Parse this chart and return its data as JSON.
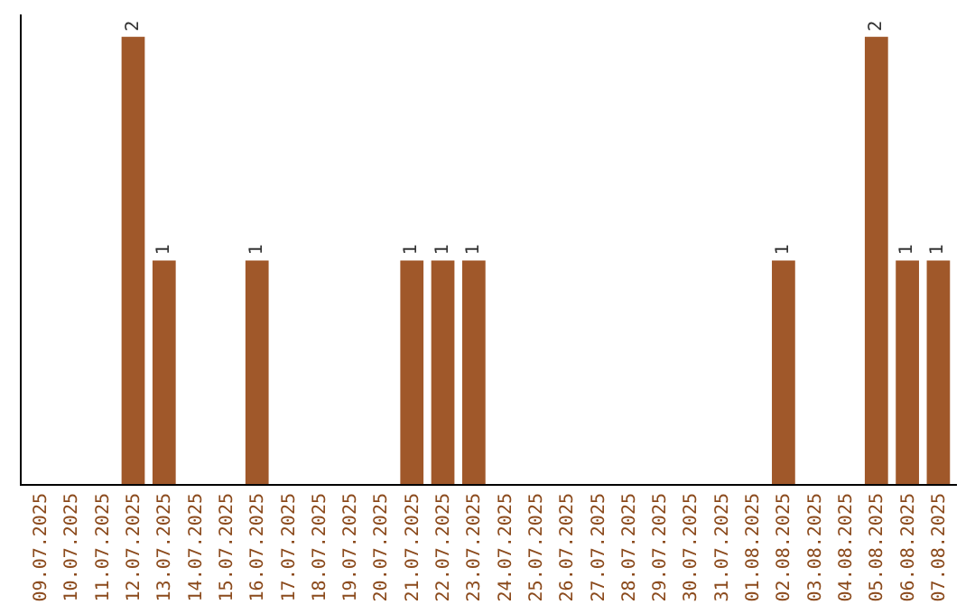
{
  "chart_data": {
    "type": "bar",
    "categories": [
      "09.07.2025",
      "10.07.2025",
      "11.07.2025",
      "12.07.2025",
      "13.07.2025",
      "14.07.2025",
      "15.07.2025",
      "16.07.2025",
      "17.07.2025",
      "18.07.2025",
      "19.07.2025",
      "20.07.2025",
      "21.07.2025",
      "22.07.2025",
      "23.07.2025",
      "24.07.2025",
      "25.07.2025",
      "26.07.2025",
      "27.07.2025",
      "28.07.2025",
      "29.07.2025",
      "30.07.2025",
      "31.07.2025",
      "01.08.2025",
      "02.08.2025",
      "03.08.2025",
      "04.08.2025",
      "05.08.2025",
      "06.08.2025",
      "07.08.2025"
    ],
    "values": [
      0,
      0,
      0,
      2,
      1,
      0,
      0,
      1,
      0,
      0,
      0,
      0,
      1,
      1,
      1,
      0,
      0,
      0,
      0,
      0,
      0,
      0,
      0,
      0,
      1,
      0,
      0,
      2,
      1,
      1
    ],
    "value_labels": [
      null,
      null,
      null,
      "2",
      "1",
      null,
      null,
      "1",
      null,
      null,
      null,
      null,
      "1",
      "1",
      "1",
      null,
      null,
      null,
      null,
      null,
      null,
      null,
      null,
      null,
      "1",
      null,
      null,
      "2",
      "1",
      "1"
    ],
    "color": "#a0582a",
    "ylim": [
      0,
      2.1
    ],
    "tick_labels": "x",
    "grid": false,
    "legend": false
  }
}
